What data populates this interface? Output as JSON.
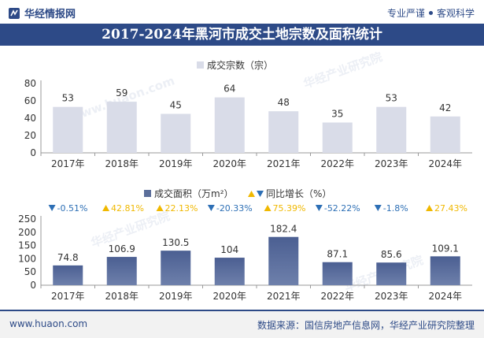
{
  "header": {
    "brand_name": "华经情报网",
    "slogan_left": "专业严谨",
    "slogan_right": "客观科学"
  },
  "title": "2017-2024年黑河市成交土地宗数及面积统计",
  "footer": {
    "url": "www.huaon.com",
    "source": "数据来源：国信房地产信息网，华经产业研究院整理"
  },
  "watermarks": [
    "华经产业研究院",
    "www.huaon.com"
  ],
  "colors": {
    "brand": "#2d4a87",
    "bar_top": "#d9dce8",
    "bar_bottom": "#5b6e9a",
    "down": "#2d6fb5",
    "up": "#f0b800"
  },
  "chart_data": [
    {
      "type": "bar",
      "legend": "成交宗数（宗）",
      "categories": [
        "2017年",
        "2018年",
        "2019年",
        "2020年",
        "2021年",
        "2022年",
        "2023年",
        "2024年"
      ],
      "values": [
        53,
        59,
        45,
        64,
        48,
        35,
        53,
        42
      ],
      "ylim": [
        0,
        80
      ],
      "yticks": [
        0,
        20,
        40,
        60,
        80
      ],
      "grid": false
    },
    {
      "type": "bar",
      "legend_bar": "成交面积（万m²）",
      "legend_growth": "同比增长（%）",
      "categories": [
        "2017年",
        "2018年",
        "2019年",
        "2020年",
        "2021年",
        "2022年",
        "2023年",
        "2024年"
      ],
      "values": [
        74.8,
        106.9,
        130.5,
        104,
        182.4,
        87.1,
        85.6,
        109.1
      ],
      "growth": [
        "-0.51%",
        "42.81%",
        "22.13%",
        "-20.33%",
        "75.39%",
        "-52.22%",
        "-1.8%",
        "27.43%"
      ],
      "growth_direction": [
        "down",
        "up",
        "up",
        "down",
        "up",
        "down",
        "down",
        "up"
      ],
      "ylim": [
        0,
        250
      ],
      "yticks": [
        0,
        50,
        100,
        150,
        200,
        250
      ],
      "grid": false
    }
  ]
}
